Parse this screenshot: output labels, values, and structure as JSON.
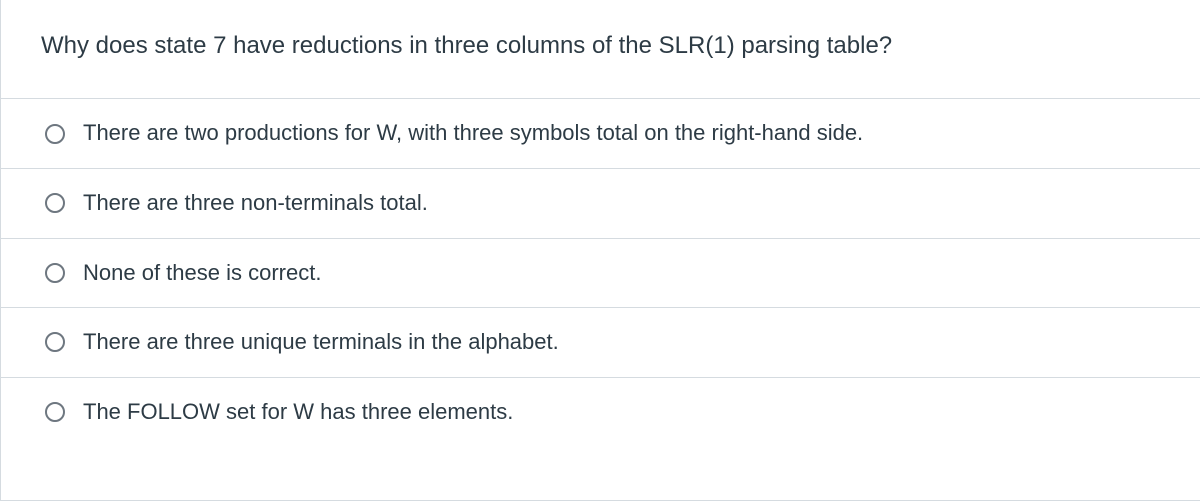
{
  "question": {
    "text": "Why does state 7 have reductions in three columns of the SLR(1) parsing table?",
    "text_color": "#2d3b45",
    "fontsize": 24
  },
  "options": [
    {
      "label": "There are two productions for W, with three symbols total on the right-hand side.",
      "selected": false
    },
    {
      "label": "There are three non-terminals total.",
      "selected": false
    },
    {
      "label": "None of these is correct.",
      "selected": false
    },
    {
      "label": "There are three unique terminals in the alphabet.",
      "selected": false
    },
    {
      "label": "The FOLLOW set for W has three elements.",
      "selected": false
    }
  ],
  "style": {
    "border_color": "#d5dbe0",
    "radio_border_color": "#6e7780",
    "option_fontsize": 22,
    "option_text_color": "#2d3b45",
    "background_color": "#ffffff"
  }
}
